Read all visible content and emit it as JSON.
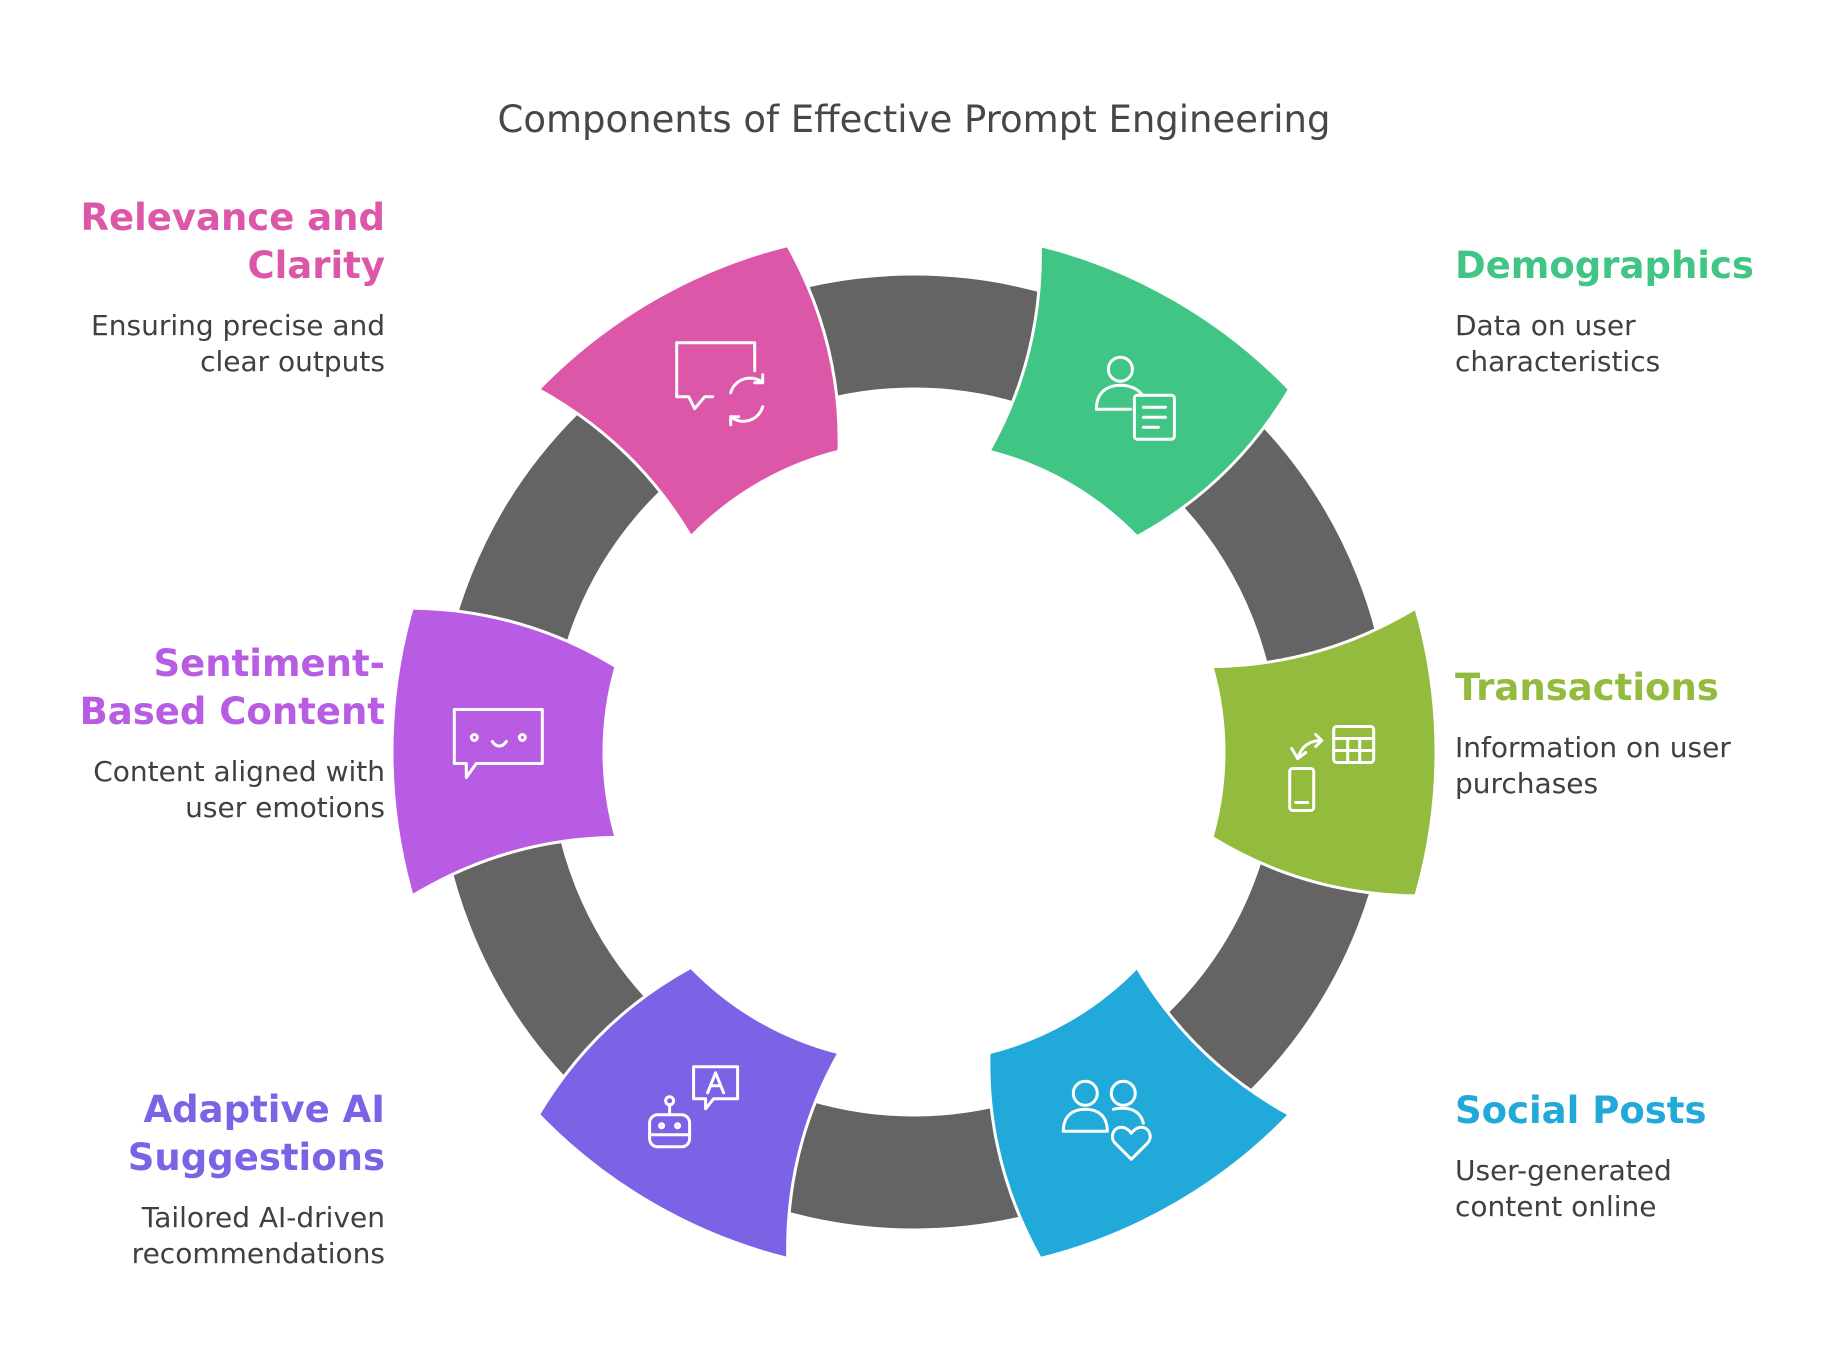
{
  "title": "Components of Effective Prompt Engineering",
  "segments": [
    {
      "id": "demographics",
      "heading": "Demographics",
      "description": "Data on user characteristics",
      "desc_lines": [
        "Data on user",
        "characteristics"
      ],
      "color": "#40c585",
      "icon": "person-document-icon"
    },
    {
      "id": "transactions",
      "heading": "Transactions",
      "description": "Information on user purchases",
      "desc_lines": [
        "Information on user",
        "purchases"
      ],
      "color": "#93bb3d",
      "icon": "phone-table-icon"
    },
    {
      "id": "social-posts",
      "heading": "Social Posts",
      "description": "User-generated content online",
      "desc_lines": [
        "User-generated",
        "content online"
      ],
      "color": "#21a9d9",
      "icon": "users-heart-icon"
    },
    {
      "id": "adaptive-ai",
      "heading_lines": [
        "Adaptive AI",
        "Suggestions"
      ],
      "description": "Tailored AI-driven recommendations",
      "desc_lines": [
        "Tailored AI-driven",
        "recommendations"
      ],
      "color": "#7c63e6",
      "icon": "robot-chat-icon"
    },
    {
      "id": "sentiment",
      "heading_lines": [
        "Sentiment-",
        "Based Content"
      ],
      "description": "Content aligned with user emotions",
      "desc_lines": [
        "Content aligned with",
        "user emotions"
      ],
      "color": "#b85ce4",
      "icon": "smile-chat-icon"
    },
    {
      "id": "relevance",
      "heading_lines": [
        "Relevance and",
        "Clarity"
      ],
      "description": "Ensuring precise and clear outputs",
      "desc_lines": [
        "Ensuring precise and",
        "clear outputs"
      ],
      "color": "#dc57a8",
      "icon": "chat-refresh-icon"
    }
  ],
  "ring_color": "#646464"
}
